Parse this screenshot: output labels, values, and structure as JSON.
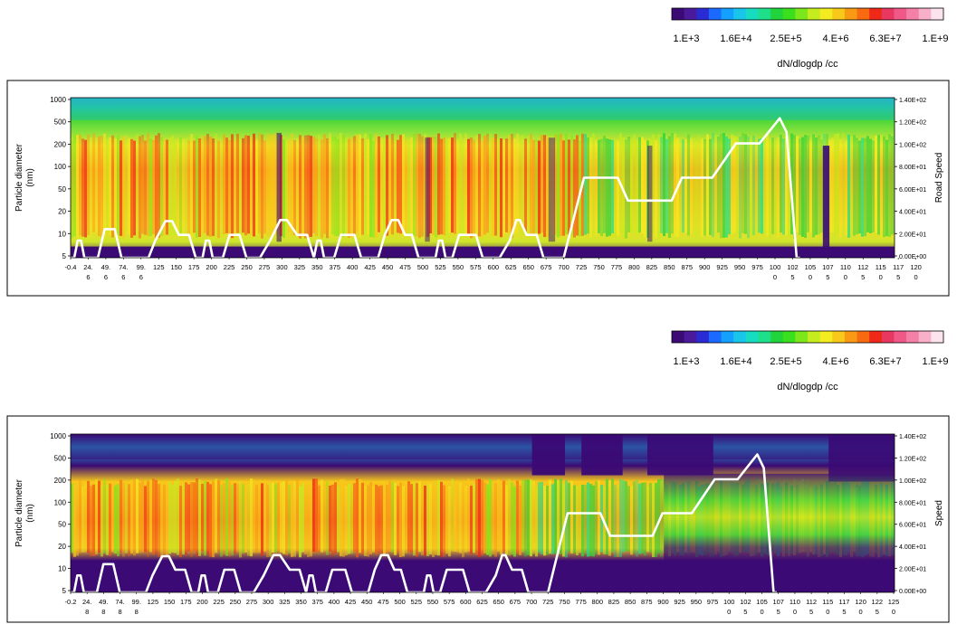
{
  "colorbar": {
    "colors": [
      "#3b0a74",
      "#4a1a9a",
      "#2b2bd4",
      "#1b6aff",
      "#13a0ff",
      "#19c6ea",
      "#18dcc0",
      "#1ee08a",
      "#22d43c",
      "#3ae01e",
      "#7ce81c",
      "#c4ec1e",
      "#f2ec20",
      "#f8c81a",
      "#f89a14",
      "#f86a10",
      "#f02818",
      "#e83860",
      "#f05888",
      "#f480a8",
      "#f8b0c8",
      "#fce4ee"
    ],
    "tick_labels": [
      "1.E+3",
      "1.6E+4",
      "2.5E+5",
      "4.E+6",
      "6.3E+7",
      "1.E+9"
    ],
    "label": "dN/dlogdp /cc"
  },
  "chart_data": [
    {
      "type": "heatmap",
      "ylabel": "Particle diameter (nm)",
      "y2label": "Road Speed",
      "yticks": [
        "1000",
        "500",
        "200",
        "100",
        "50",
        "20",
        "10",
        "5"
      ],
      "y2ticks": [
        "1.40E+02",
        "1.20E+02",
        "1.00E+02",
        "8.00E+01",
        "6.00E+01",
        "4.00E+01",
        "2.00E+01",
        "0.00E+00"
      ],
      "xticks": [
        [
          "-0.4",
          ""
        ],
        [
          "24.",
          "6"
        ],
        [
          "49.",
          "6"
        ],
        [
          "74.",
          "6"
        ],
        [
          "99.",
          "6"
        ],
        [
          "125",
          ""
        ],
        [
          "150",
          ""
        ],
        [
          "175",
          ""
        ],
        [
          "200",
          ""
        ],
        [
          "225",
          ""
        ],
        [
          "250",
          ""
        ],
        [
          "275",
          ""
        ],
        [
          "300",
          ""
        ],
        [
          "325",
          ""
        ],
        [
          "350",
          ""
        ],
        [
          "375",
          ""
        ],
        [
          "400",
          ""
        ],
        [
          "425",
          ""
        ],
        [
          "450",
          ""
        ],
        [
          "475",
          ""
        ],
        [
          "500",
          ""
        ],
        [
          "525",
          ""
        ],
        [
          "550",
          ""
        ],
        [
          "575",
          ""
        ],
        [
          "600",
          ""
        ],
        [
          "625",
          ""
        ],
        [
          "650",
          ""
        ],
        [
          "675",
          ""
        ],
        [
          "700",
          ""
        ],
        [
          "725",
          ""
        ],
        [
          "750",
          ""
        ],
        [
          "775",
          ""
        ],
        [
          "800",
          ""
        ],
        [
          "825",
          ""
        ],
        [
          "850",
          ""
        ],
        [
          "875",
          ""
        ],
        [
          "900",
          ""
        ],
        [
          "925",
          ""
        ],
        [
          "950",
          ""
        ],
        [
          "975",
          ""
        ],
        [
          "100",
          "0"
        ],
        [
          "102",
          "5"
        ],
        [
          "105",
          "0"
        ],
        [
          "107",
          "5"
        ],
        [
          "110",
          "0"
        ],
        [
          "112",
          "5"
        ],
        [
          "115",
          "0"
        ],
        [
          "117",
          "5"
        ],
        [
          "120",
          "0"
        ]
      ],
      "speed_trace": [
        [
          -0.4,
          0
        ],
        [
          5,
          0
        ],
        [
          10,
          15
        ],
        [
          15,
          15
        ],
        [
          20,
          0
        ],
        [
          40,
          0
        ],
        [
          50,
          25
        ],
        [
          65,
          25
        ],
        [
          75,
          0
        ],
        [
          90,
          0
        ],
        [
          100,
          0
        ],
        [
          115,
          0
        ],
        [
          125,
          15
        ],
        [
          140,
          32
        ],
        [
          150,
          32
        ],
        [
          160,
          20
        ],
        [
          175,
          20
        ],
        [
          185,
          0
        ],
        [
          195,
          0
        ],
        [
          200,
          15
        ],
        [
          205,
          15
        ],
        [
          210,
          0
        ],
        [
          225,
          0
        ],
        [
          235,
          20
        ],
        [
          250,
          20
        ],
        [
          260,
          0
        ],
        [
          280,
          0
        ],
        [
          295,
          15
        ],
        [
          310,
          33
        ],
        [
          320,
          33
        ],
        [
          335,
          20
        ],
        [
          350,
          20
        ],
        [
          360,
          0
        ],
        [
          365,
          15
        ],
        [
          370,
          15
        ],
        [
          375,
          0
        ],
        [
          390,
          0
        ],
        [
          400,
          20
        ],
        [
          420,
          20
        ],
        [
          430,
          0
        ],
        [
          455,
          0
        ],
        [
          465,
          20
        ],
        [
          475,
          33
        ],
        [
          485,
          33
        ],
        [
          495,
          20
        ],
        [
          505,
          20
        ],
        [
          515,
          0
        ],
        [
          540,
          0
        ],
        [
          545,
          15
        ],
        [
          550,
          15
        ],
        [
          555,
          0
        ],
        [
          565,
          0
        ],
        [
          575,
          20
        ],
        [
          600,
          20
        ],
        [
          610,
          0
        ],
        [
          635,
          0
        ],
        [
          650,
          15
        ],
        [
          660,
          33
        ],
        [
          665,
          33
        ],
        [
          675,
          20
        ],
        [
          690,
          20
        ],
        [
          700,
          0
        ],
        [
          730,
          0
        ],
        [
          760,
          70
        ],
        [
          810,
          70
        ],
        [
          825,
          50
        ],
        [
          890,
          50
        ],
        [
          905,
          70
        ],
        [
          950,
          70
        ],
        [
          985,
          100
        ],
        [
          1020,
          100
        ],
        [
          1050,
          122
        ],
        [
          1060,
          110
        ],
        [
          1075,
          0
        ],
        [
          1080,
          0
        ]
      ],
      "xrange": [
        -0.4,
        1220
      ],
      "y2range": [
        0,
        140
      ]
    },
    {
      "type": "heatmap",
      "ylabel": "Particle diameter (nm)",
      "y2label": "Speed",
      "yticks": [
        "1000",
        "500",
        "200",
        "100",
        "50",
        "20",
        "10",
        "5"
      ],
      "y2ticks": [
        "1.40E+02",
        "1.20E+02",
        "1.00E+02",
        "8.00E+01",
        "6.00E+01",
        "4.00E+01",
        "2.00E+01",
        "0.00E+00"
      ],
      "xticks": [
        [
          "-0.2",
          ""
        ],
        [
          "24.",
          "8"
        ],
        [
          "49.",
          "8"
        ],
        [
          "74.",
          "8"
        ],
        [
          "99.",
          "8"
        ],
        [
          "125",
          ""
        ],
        [
          "150",
          ""
        ],
        [
          "175",
          ""
        ],
        [
          "200",
          ""
        ],
        [
          "225",
          ""
        ],
        [
          "250",
          ""
        ],
        [
          "275",
          ""
        ],
        [
          "300",
          ""
        ],
        [
          "325",
          ""
        ],
        [
          "350",
          ""
        ],
        [
          "375",
          ""
        ],
        [
          "400",
          ""
        ],
        [
          "425",
          ""
        ],
        [
          "450",
          ""
        ],
        [
          "475",
          ""
        ],
        [
          "500",
          ""
        ],
        [
          "525",
          ""
        ],
        [
          "550",
          ""
        ],
        [
          "575",
          ""
        ],
        [
          "600",
          ""
        ],
        [
          "625",
          ""
        ],
        [
          "650",
          ""
        ],
        [
          "675",
          ""
        ],
        [
          "700",
          ""
        ],
        [
          "725",
          ""
        ],
        [
          "750",
          ""
        ],
        [
          "775",
          ""
        ],
        [
          "800",
          ""
        ],
        [
          "825",
          ""
        ],
        [
          "850",
          ""
        ],
        [
          "875",
          ""
        ],
        [
          "900",
          ""
        ],
        [
          "925",
          ""
        ],
        [
          "950",
          ""
        ],
        [
          "975",
          ""
        ],
        [
          "100",
          "0"
        ],
        [
          "102",
          "5"
        ],
        [
          "105",
          "0"
        ],
        [
          "107",
          "5"
        ],
        [
          "110",
          "0"
        ],
        [
          "112",
          "5"
        ],
        [
          "115",
          "0"
        ],
        [
          "117",
          "5"
        ],
        [
          "120",
          "0"
        ],
        [
          "122",
          "5"
        ],
        [
          "125",
          "0"
        ]
      ],
      "speed_trace": [
        [
          -0.2,
          0
        ],
        [
          5,
          0
        ],
        [
          10,
          15
        ],
        [
          15,
          15
        ],
        [
          20,
          0
        ],
        [
          40,
          0
        ],
        [
          50,
          25
        ],
        [
          65,
          25
        ],
        [
          75,
          0
        ],
        [
          90,
          0
        ],
        [
          100,
          0
        ],
        [
          115,
          0
        ],
        [
          125,
          15
        ],
        [
          140,
          32
        ],
        [
          150,
          32
        ],
        [
          160,
          20
        ],
        [
          175,
          20
        ],
        [
          185,
          0
        ],
        [
          195,
          0
        ],
        [
          200,
          15
        ],
        [
          205,
          15
        ],
        [
          210,
          0
        ],
        [
          225,
          0
        ],
        [
          235,
          20
        ],
        [
          250,
          20
        ],
        [
          260,
          0
        ],
        [
          280,
          0
        ],
        [
          295,
          15
        ],
        [
          310,
          33
        ],
        [
          320,
          33
        ],
        [
          335,
          20
        ],
        [
          350,
          20
        ],
        [
          360,
          0
        ],
        [
          365,
          15
        ],
        [
          370,
          15
        ],
        [
          375,
          0
        ],
        [
          390,
          0
        ],
        [
          400,
          20
        ],
        [
          420,
          20
        ],
        [
          430,
          0
        ],
        [
          455,
          0
        ],
        [
          465,
          20
        ],
        [
          475,
          33
        ],
        [
          485,
          33
        ],
        [
          495,
          20
        ],
        [
          505,
          20
        ],
        [
          515,
          0
        ],
        [
          540,
          0
        ],
        [
          545,
          15
        ],
        [
          550,
          15
        ],
        [
          555,
          0
        ],
        [
          565,
          0
        ],
        [
          575,
          20
        ],
        [
          600,
          20
        ],
        [
          610,
          0
        ],
        [
          635,
          0
        ],
        [
          650,
          15
        ],
        [
          660,
          33
        ],
        [
          665,
          33
        ],
        [
          675,
          20
        ],
        [
          690,
          20
        ],
        [
          700,
          0
        ],
        [
          730,
          0
        ],
        [
          760,
          70
        ],
        [
          810,
          70
        ],
        [
          825,
          50
        ],
        [
          890,
          50
        ],
        [
          905,
          70
        ],
        [
          950,
          70
        ],
        [
          985,
          100
        ],
        [
          1020,
          100
        ],
        [
          1050,
          122
        ],
        [
          1060,
          110
        ],
        [
          1075,
          0
        ],
        [
          1080,
          0
        ]
      ],
      "xrange": [
        -0.2,
        1260
      ],
      "y2range": [
        0,
        140
      ]
    }
  ]
}
